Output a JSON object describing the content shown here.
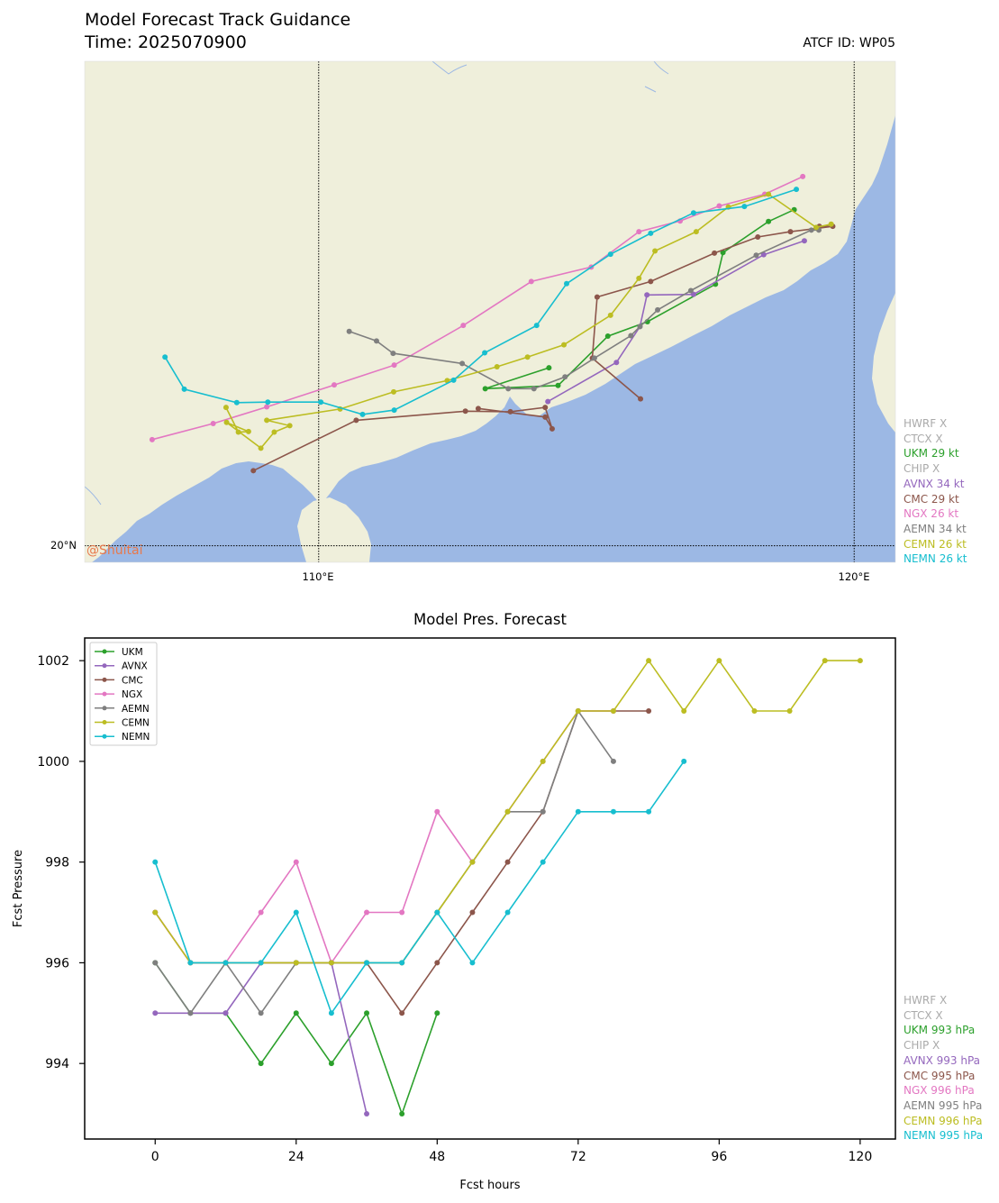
{
  "map": {
    "title": "Model Forecast Track Guidance",
    "time_label": "Time: 2025070900",
    "atcf_label": "ATCF ID: WP05",
    "watermark": "@Shuitai",
    "lat_label": "20°N",
    "lon_labels": [
      "110°E",
      "120°E"
    ],
    "colors": {
      "land": "#efefdb",
      "sea": "#9cb8e4",
      "river": "#9cb8e4"
    },
    "legend": [
      {
        "text": "HWRF X",
        "color": "#aaaaaa"
      },
      {
        "text": "CTCX X",
        "color": "#aaaaaa"
      },
      {
        "text": "UKM 29 kt",
        "color": "#2ca02c"
      },
      {
        "text": "CHIP X",
        "color": "#aaaaaa"
      },
      {
        "text": "AVNX 34 kt",
        "color": "#9467bd"
      },
      {
        "text": "CMC 29 kt",
        "color": "#8c564b"
      },
      {
        "text": "NGX 26 kt",
        "color": "#e377c2"
      },
      {
        "text": "AEMN 34 kt",
        "color": "#7f7f7f"
      },
      {
        "text": "CEMN 26 kt",
        "color": "#bcbd22"
      },
      {
        "text": "NEMN 26 kt",
        "color": "#17becf"
      }
    ]
  },
  "chart_data": [
    {
      "type": "line",
      "subtype": "track-map",
      "xlim": [
        105.63,
        120.77
      ],
      "ylim": [
        19.69,
        29.04
      ],
      "gridlines": {
        "lon": [
          110,
          120
        ],
        "lat": [
          20
        ]
      },
      "series": [
        {
          "name": "UKM",
          "color": "#2ca02c",
          "points": [
            [
              114.3,
              23.32
            ],
            [
              113.11,
              22.93
            ],
            [
              114.47,
              22.99
            ],
            [
              115.4,
              23.91
            ],
            [
              116.14,
              24.18
            ],
            [
              117.41,
              24.88
            ],
            [
              117.55,
              25.47
            ],
            [
              118.4,
              26.05
            ],
            [
              118.88,
              26.27
            ]
          ]
        },
        {
          "name": "AVNX",
          "color": "#9467bd",
          "points": [
            [
              114.28,
              22.69
            ],
            [
              115.56,
              23.42
            ],
            [
              116.0,
              24.09
            ],
            [
              116.13,
              24.68
            ],
            [
              117.0,
              24.69
            ],
            [
              118.31,
              25.43
            ],
            [
              119.07,
              25.69
            ]
          ]
        },
        {
          "name": "CMC",
          "color": "#8c564b",
          "points": [
            [
              116.01,
              22.74
            ],
            [
              115.11,
              23.5
            ],
            [
              115.2,
              24.64
            ],
            [
              116.2,
              24.93
            ],
            [
              117.39,
              25.46
            ],
            [
              118.2,
              25.76
            ],
            [
              118.81,
              25.86
            ],
            [
              119.6,
              25.96
            ],
            [
              119.35,
              25.96
            ]
          ]
        },
        {
          "name": "CMC-early",
          "color": "#8c564b",
          "points": [
            [
              108.78,
              21.4
            ],
            [
              110.7,
              22.34
            ],
            [
              112.74,
              22.51
            ],
            [
              113.58,
              22.5
            ],
            [
              114.23,
              22.58
            ],
            [
              114.36,
              22.18
            ],
            [
              114.23,
              22.4
            ],
            [
              112.98,
              22.56
            ]
          ]
        },
        {
          "name": "NGX",
          "color": "#e377c2",
          "points": [
            [
              106.89,
              21.98
            ],
            [
              108.03,
              22.28
            ],
            [
              109.03,
              22.59
            ],
            [
              110.29,
              23.0
            ],
            [
              111.41,
              23.37
            ],
            [
              112.7,
              24.11
            ],
            [
              113.97,
              24.93
            ],
            [
              115.09,
              25.2
            ],
            [
              115.98,
              25.86
            ],
            [
              116.75,
              26.06
            ],
            [
              117.48,
              26.34
            ],
            [
              118.33,
              26.56
            ],
            [
              119.04,
              26.89
            ]
          ]
        },
        {
          "name": "AEMN",
          "color": "#7f7f7f",
          "points": [
            [
              110.57,
              24.0
            ],
            [
              111.08,
              23.82
            ],
            [
              111.39,
              23.59
            ],
            [
              112.68,
              23.4
            ],
            [
              113.54,
              22.93
            ],
            [
              114.02,
              22.93
            ],
            [
              114.6,
              23.15
            ],
            [
              115.15,
              23.5
            ],
            [
              115.83,
              23.92
            ],
            [
              116.0,
              24.09
            ],
            [
              116.33,
              24.4
            ],
            [
              116.95,
              24.76
            ],
            [
              118.17,
              25.42
            ],
            [
              119.2,
              25.89
            ],
            [
              119.34,
              25.89
            ]
          ]
        },
        {
          "name": "CEMN",
          "color": "#bcbd22",
          "points": [
            [
              108.27,
              22.58
            ],
            [
              108.5,
              22.12
            ],
            [
              108.69,
              22.13
            ],
            [
              108.28,
              22.3
            ],
            [
              108.92,
              21.82
            ],
            [
              109.17,
              22.12
            ],
            [
              109.46,
              22.24
            ],
            [
              109.03,
              22.34
            ],
            [
              110.4,
              22.55
            ],
            [
              111.4,
              22.87
            ],
            [
              112.4,
              23.08
            ],
            [
              113.33,
              23.34
            ],
            [
              113.9,
              23.52
            ],
            [
              114.58,
              23.75
            ],
            [
              115.45,
              24.3
            ],
            [
              115.98,
              24.99
            ],
            [
              116.28,
              25.5
            ],
            [
              117.05,
              25.86
            ],
            [
              117.65,
              26.32
            ],
            [
              118.4,
              26.56
            ],
            [
              119.29,
              25.94
            ],
            [
              119.57,
              26.0
            ]
          ]
        },
        {
          "name": "NEMN",
          "color": "#17becf",
          "points": [
            [
              107.13,
              23.52
            ],
            [
              107.49,
              22.92
            ],
            [
              108.47,
              22.67
            ],
            [
              109.05,
              22.68
            ],
            [
              110.04,
              22.68
            ],
            [
              110.82,
              22.45
            ],
            [
              111.41,
              22.53
            ],
            [
              112.52,
              23.09
            ],
            [
              113.1,
              23.6
            ],
            [
              114.07,
              24.11
            ],
            [
              114.63,
              24.89
            ],
            [
              115.45,
              25.44
            ],
            [
              116.2,
              25.83
            ],
            [
              117.0,
              26.21
            ],
            [
              117.95,
              26.33
            ],
            [
              118.92,
              26.65
            ]
          ]
        }
      ],
      "land_outline": "stylised coastline of southern China, Taiwan and Hainan",
      "legend_position": "right"
    },
    {
      "type": "line",
      "title": "Model Pres. Forecast",
      "xlabel": "Fcst hours",
      "ylabel": "Fcst Pressure",
      "xlim": [
        -12,
        126
      ],
      "ylim": [
        992.5,
        1002.45
      ],
      "xticks": [
        0,
        24,
        48,
        72,
        96,
        120
      ],
      "yticks": [
        994,
        996,
        998,
        1000,
        1002
      ],
      "legend_position": "top-left",
      "legend_entries": [
        "UKM",
        "AVNX",
        "CMC",
        "NGX",
        "AEMN",
        "CEMN",
        "NEMN"
      ],
      "series": [
        {
          "name": "UKM",
          "color": "#2ca02c",
          "x": [
            0,
            6,
            12,
            18,
            24,
            30,
            36,
            42,
            48
          ],
          "y": [
            996,
            995,
            995,
            994,
            995,
            994,
            995,
            993,
            995
          ]
        },
        {
          "name": "AVNX",
          "color": "#9467bd",
          "x": [
            0,
            6,
            12,
            18,
            24,
            30,
            36
          ],
          "y": [
            995,
            995,
            995,
            996,
            996,
            996,
            993
          ]
        },
        {
          "name": "CMC",
          "color": "#8c564b",
          "x": [
            0,
            6,
            12,
            18,
            24,
            30,
            36,
            42,
            48,
            54,
            60,
            66,
            72,
            78,
            84
          ],
          "y": [
            997,
            996,
            996,
            996,
            996,
            996,
            996,
            995,
            996,
            997,
            998,
            999,
            1001,
            1001,
            1001
          ]
        },
        {
          "name": "NGX",
          "color": "#e377c2",
          "x": [
            0,
            6,
            12,
            18,
            24,
            30,
            36,
            42,
            48,
            54,
            60,
            66,
            72,
            78
          ],
          "y": [
            997,
            996,
            996,
            997,
            998,
            996,
            997,
            997,
            999,
            998,
            999,
            1000,
            1001,
            1001
          ]
        },
        {
          "name": "AEMN",
          "color": "#7f7f7f",
          "x": [
            0,
            6,
            12,
            18,
            24,
            30,
            36,
            42,
            48,
            54,
            60,
            66,
            72,
            78
          ],
          "y": [
            996,
            995,
            996,
            995,
            996,
            996,
            996,
            996,
            997,
            998,
            999,
            999,
            1001,
            1000
          ]
        },
        {
          "name": "CEMN",
          "color": "#bcbd22",
          "x": [
            0,
            6,
            12,
            18,
            24,
            30,
            36,
            42,
            48,
            54,
            60,
            66,
            72,
            78,
            84,
            90,
            96,
            102,
            108,
            114,
            120
          ],
          "y": [
            997,
            996,
            996,
            996,
            996,
            996,
            996,
            996,
            997,
            998,
            999,
            1000,
            1001,
            1001,
            1002,
            1001,
            1002,
            1001,
            1001,
            1002,
            1002
          ]
        },
        {
          "name": "NEMN",
          "color": "#17becf",
          "x": [
            0,
            6,
            12,
            18,
            24,
            30,
            36,
            42,
            48,
            54,
            60,
            66,
            72,
            78,
            84,
            90
          ],
          "y": [
            998,
            996,
            996,
            996,
            997,
            995,
            996,
            996,
            997,
            996,
            997,
            998,
            999,
            999,
            999,
            1000
          ]
        }
      ]
    }
  ],
  "pressure_side_legend": [
    {
      "text": "HWRF X",
      "color": "#aaaaaa"
    },
    {
      "text": "CTCX X",
      "color": "#aaaaaa"
    },
    {
      "text": "UKM 993 hPa",
      "color": "#2ca02c"
    },
    {
      "text": "CHIP X",
      "color": "#aaaaaa"
    },
    {
      "text": "AVNX 993 hPa",
      "color": "#9467bd"
    },
    {
      "text": "CMC 995 hPa",
      "color": "#8c564b"
    },
    {
      "text": "NGX 996 hPa",
      "color": "#e377c2"
    },
    {
      "text": "AEMN 995 hPa",
      "color": "#7f7f7f"
    },
    {
      "text": "CEMN 996 hPa",
      "color": "#bcbd22"
    },
    {
      "text": "NEMN 995 hPa",
      "color": "#17becf"
    }
  ]
}
